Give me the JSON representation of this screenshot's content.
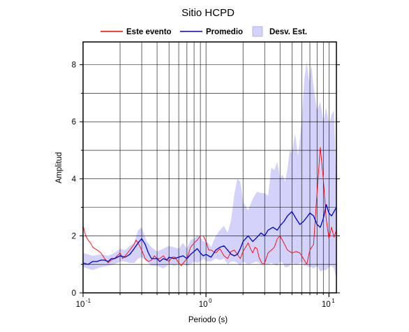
{
  "chart_data": {
    "type": "line",
    "title": "Sitio HCPD",
    "xlabel": "Periodo (s)",
    "ylabel": "Amplitud",
    "xscale": "log",
    "xlim": [
      0.1,
      11.5
    ],
    "ylim": [
      0,
      8.8
    ],
    "grid": true,
    "legend_position": "top",
    "x_ticks": [
      {
        "base": "10",
        "exp": "-1",
        "value": 0.1
      },
      {
        "base": "10",
        "exp": "0",
        "value": 1
      },
      {
        "base": "10",
        "exp": "1",
        "value": 10
      }
    ],
    "y_ticks": [
      {
        "label": "0",
        "value": 0
      },
      {
        "label": "2",
        "value": 2
      },
      {
        "label": "4",
        "value": 4
      },
      {
        "label": "6",
        "value": 6
      },
      {
        "label": "8",
        "value": 8
      }
    ],
    "legend": {
      "evento": "Este evento",
      "promedio": "Promedio",
      "desv": "Desv. Est."
    },
    "colors": {
      "evento": "#ff0000",
      "promedio": "#0000cc",
      "desv_fill": "#d2d2fa",
      "desv_stroke": "#a8a8e6",
      "grid": "#000000"
    },
    "series": [
      {
        "name": "Este evento",
        "x": [
          0.1,
          0.105,
          0.11,
          0.115,
          0.12,
          0.13,
          0.14,
          0.15,
          0.16,
          0.17,
          0.18,
          0.19,
          0.2,
          0.21,
          0.22,
          0.23,
          0.24,
          0.25,
          0.26,
          0.27,
          0.28,
          0.3,
          0.32,
          0.34,
          0.36,
          0.38,
          0.4,
          0.42,
          0.45,
          0.48,
          0.5,
          0.53,
          0.56,
          0.6,
          0.63,
          0.67,
          0.7,
          0.75,
          0.8,
          0.85,
          0.9,
          0.95,
          1.0,
          1.05,
          1.1,
          1.2,
          1.3,
          1.4,
          1.5,
          1.6,
          1.7,
          1.8,
          1.9,
          2.0,
          2.1,
          2.2,
          2.3,
          2.4,
          2.5,
          2.6,
          2.7,
          2.8,
          2.9,
          3.0,
          3.2,
          3.4,
          3.6,
          3.8,
          4.0,
          4.3,
          4.6,
          5.0,
          5.4,
          5.8,
          6.2,
          6.6,
          7.0,
          7.5,
          8.0,
          8.5,
          9.0,
          9.5,
          10.0,
          10.5,
          11.0,
          11.5
        ],
        "y": [
          2.35,
          2.0,
          1.85,
          1.75,
          1.6,
          1.5,
          1.4,
          1.2,
          1.05,
          1.15,
          1.2,
          1.3,
          1.4,
          1.2,
          1.3,
          1.4,
          1.5,
          1.6,
          1.7,
          1.85,
          1.75,
          1.5,
          1.2,
          1.1,
          1.15,
          1.3,
          1.2,
          1.2,
          1.3,
          1.15,
          1.1,
          1.25,
          1.25,
          1.05,
          0.95,
          1.1,
          1.2,
          1.6,
          1.75,
          1.85,
          2.0,
          2.0,
          1.8,
          1.5,
          1.5,
          1.4,
          1.55,
          1.3,
          1.2,
          1.45,
          1.5,
          1.35,
          1.2,
          1.45,
          1.6,
          1.75,
          1.55,
          1.4,
          1.6,
          1.55,
          1.25,
          1.1,
          1.0,
          1.05,
          1.4,
          1.5,
          1.6,
          1.9,
          2.0,
          1.75,
          1.5,
          1.4,
          1.45,
          1.4,
          1.2,
          1.0,
          1.5,
          1.7,
          3.5,
          5.1,
          4.0,
          2.6,
          1.9,
          2.3,
          1.95,
          2.2
        ]
      },
      {
        "name": "Promedio",
        "x": [
          0.1,
          0.11,
          0.12,
          0.13,
          0.14,
          0.15,
          0.16,
          0.17,
          0.18,
          0.2,
          0.22,
          0.24,
          0.26,
          0.28,
          0.3,
          0.32,
          0.34,
          0.36,
          0.38,
          0.4,
          0.42,
          0.45,
          0.48,
          0.5,
          0.55,
          0.6,
          0.65,
          0.7,
          0.75,
          0.8,
          0.85,
          0.9,
          0.95,
          1.0,
          1.1,
          1.2,
          1.3,
          1.4,
          1.5,
          1.6,
          1.7,
          1.8,
          1.9,
          2.0,
          2.2,
          2.4,
          2.6,
          2.8,
          3.0,
          3.2,
          3.5,
          3.8,
          4.0,
          4.3,
          4.6,
          5.0,
          5.4,
          5.8,
          6.2,
          6.6,
          7.0,
          7.5,
          8.0,
          8.5,
          9.0,
          9.5,
          10.0,
          10.5,
          11.0,
          11.5
        ],
        "y": [
          1.05,
          1.0,
          1.1,
          1.1,
          1.15,
          1.15,
          1.1,
          1.2,
          1.2,
          1.3,
          1.25,
          1.35,
          1.55,
          1.75,
          1.9,
          1.7,
          1.4,
          1.2,
          1.2,
          1.2,
          1.1,
          1.2,
          1.15,
          1.25,
          1.2,
          1.25,
          1.3,
          1.2,
          1.35,
          1.45,
          1.55,
          1.4,
          1.3,
          1.35,
          1.25,
          1.5,
          1.6,
          1.65,
          1.5,
          1.35,
          1.3,
          1.35,
          1.55,
          1.8,
          2.0,
          1.8,
          1.95,
          2.1,
          2.0,
          2.2,
          2.3,
          2.2,
          2.35,
          2.5,
          2.7,
          2.85,
          2.6,
          2.4,
          2.5,
          2.65,
          2.8,
          2.7,
          2.4,
          2.3,
          2.6,
          3.1,
          2.8,
          2.7,
          2.85,
          3.0
        ]
      }
    ],
    "desv_band": {
      "x": [
        0.1,
        0.12,
        0.14,
        0.16,
        0.18,
        0.2,
        0.22,
        0.24,
        0.26,
        0.28,
        0.3,
        0.33,
        0.36,
        0.4,
        0.45,
        0.5,
        0.55,
        0.6,
        0.65,
        0.7,
        0.75,
        0.8,
        0.85,
        0.9,
        0.95,
        1.0,
        1.1,
        1.2,
        1.3,
        1.4,
        1.5,
        1.6,
        1.7,
        1.8,
        1.9,
        2.0,
        2.2,
        2.4,
        2.6,
        2.8,
        3.0,
        3.2,
        3.4,
        3.6,
        3.8,
        4.0,
        4.2,
        4.4,
        4.6,
        4.8,
        5.0,
        5.3,
        5.6,
        6.0,
        6.3,
        6.6,
        6.9,
        7.2,
        7.5,
        8.0,
        8.5,
        9.0,
        9.5,
        10.0,
        10.5,
        11.0,
        11.5
      ],
      "upper": [
        1.4,
        1.3,
        1.35,
        1.3,
        1.4,
        1.55,
        1.5,
        1.65,
        1.75,
        2.2,
        2.3,
        1.8,
        1.6,
        1.45,
        1.55,
        1.65,
        1.6,
        1.55,
        1.75,
        1.55,
        1.85,
        1.9,
        2.0,
        1.95,
        1.8,
        1.85,
        1.6,
        2.0,
        2.2,
        2.35,
        2.1,
        2.55,
        3.45,
        4.0,
        3.9,
        3.2,
        2.9,
        3.3,
        3.55,
        3.5,
        3.5,
        3.4,
        4.4,
        4.3,
        4.6,
        4.0,
        4.15,
        3.9,
        4.35,
        5.0,
        4.9,
        5.6,
        4.8,
        6.0,
        7.5,
        8.1,
        7.4,
        8.0,
        7.2,
        6.4,
        6.7,
        6.0,
        6.5,
        5.9,
        6.25,
        6.4,
        3.6
      ],
      "lower": [
        0.9,
        0.8,
        0.9,
        0.95,
        1.0,
        1.1,
        1.1,
        1.05,
        1.05,
        1.2,
        1.25,
        1.1,
        0.95,
        0.95,
        0.85,
        1.0,
        0.95,
        1.0,
        1.0,
        0.95,
        1.0,
        1.1,
        1.05,
        1.1,
        1.2,
        1.1,
        1.1,
        1.2,
        1.15,
        1.2,
        1.0,
        1.1,
        1.1,
        1.05,
        0.95,
        1.1,
        1.0,
        1.05,
        1.1,
        1.0,
        1.0,
        1.0,
        1.05,
        1.0,
        0.95,
        1.1,
        1.05,
        0.9,
        0.9,
        0.95,
        1.05,
        1.0,
        1.0,
        1.1,
        0.95,
        0.95,
        0.9,
        0.9,
        0.85,
        0.95,
        0.75,
        0.8,
        0.8,
        0.9,
        0.95,
        0.85,
        0.5
      ]
    }
  }
}
